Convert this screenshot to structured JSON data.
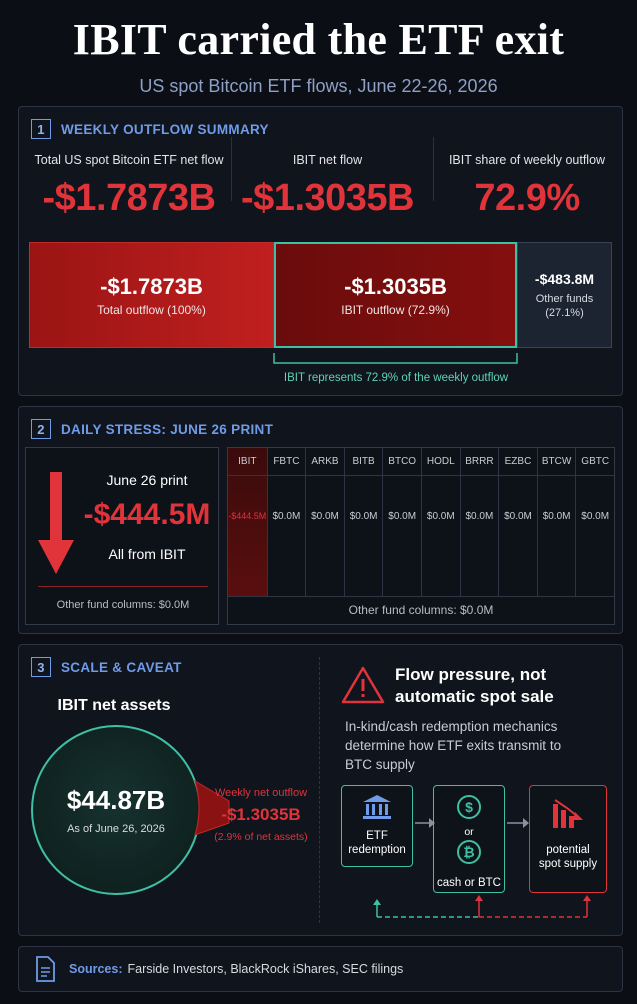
{
  "header": {
    "title": "IBIT carried the ETF exit",
    "subtitle": "US spot Bitcoin ETF flows, June 22-26, 2026"
  },
  "colors": {
    "accent_red": "#e0333a",
    "accent_teal": "#3fbfa3",
    "accent_blue": "#6f9be8",
    "background": "#0b0e15"
  },
  "section1": {
    "number": "1",
    "title": "WEEKLY OUTFLOW SUMMARY",
    "kpis": [
      {
        "label": "Total US spot Bitcoin ETF net flow",
        "value": "-$1.7873B"
      },
      {
        "label": "IBIT net flow",
        "value": "-$1.3035B"
      },
      {
        "label": "IBIT share of weekly outflow",
        "value": "72.9%"
      }
    ],
    "bars": {
      "total": {
        "value": "-$1.7873B",
        "label": "Total outflow (100%)"
      },
      "ibit": {
        "value": "-$1.3035B",
        "label": "IBIT outflow (72.9%)",
        "share": 0.729
      },
      "other": {
        "value": "-$483.8M",
        "label": "Other funds",
        "pct": "(27.1%)",
        "share": 0.271
      }
    },
    "note": "IBIT represents 72.9% of the weekly outflow"
  },
  "section2": {
    "number": "2",
    "title": "DAILY STRESS: JUNE 26 PRINT",
    "print_label": "June 26 print",
    "print_value": "-$444.5M",
    "print_note": "All from IBIT",
    "other_note": "Other fund columns: $0.0M",
    "table": {
      "columns": [
        "IBIT",
        "FBTC",
        "ARKB",
        "BITB",
        "BTCO",
        "HODL",
        "BRRR",
        "EZBC",
        "BTCW",
        "GBTC"
      ],
      "values": [
        "-$444.5M",
        "$0.0M",
        "$0.0M",
        "$0.0M",
        "$0.0M",
        "$0.0M",
        "$0.0M",
        "$0.0M",
        "$0.0M",
        "$0.0M"
      ],
      "footer": "Other fund columns: $0.0M"
    }
  },
  "section3": {
    "number": "3",
    "title": "SCALE & CAVEAT",
    "assets_label": "IBIT net assets",
    "assets_value": "$44.87B",
    "assets_date": "As of June 26, 2026",
    "outflow_label": "Weekly net outflow",
    "outflow_value": "-$1.3035B",
    "outflow_pct": "(2.9% of net assets)",
    "warning_title_1": "Flow pressure, not",
    "warning_title_2": "automatic spot sale",
    "warning_body": "In-kind/cash redemption mechanics determine how ETF exits transmit to BTC supply",
    "flow": [
      {
        "label_1": "ETF",
        "label_2": "redemption"
      },
      {
        "label_1": "or",
        "label_2": "cash or BTC"
      },
      {
        "label_1": "potential",
        "label_2": "spot supply"
      }
    ]
  },
  "footer": {
    "sources_label": "Sources:",
    "sources_text": "Farside Investors, BlackRock iShares, SEC filings"
  }
}
